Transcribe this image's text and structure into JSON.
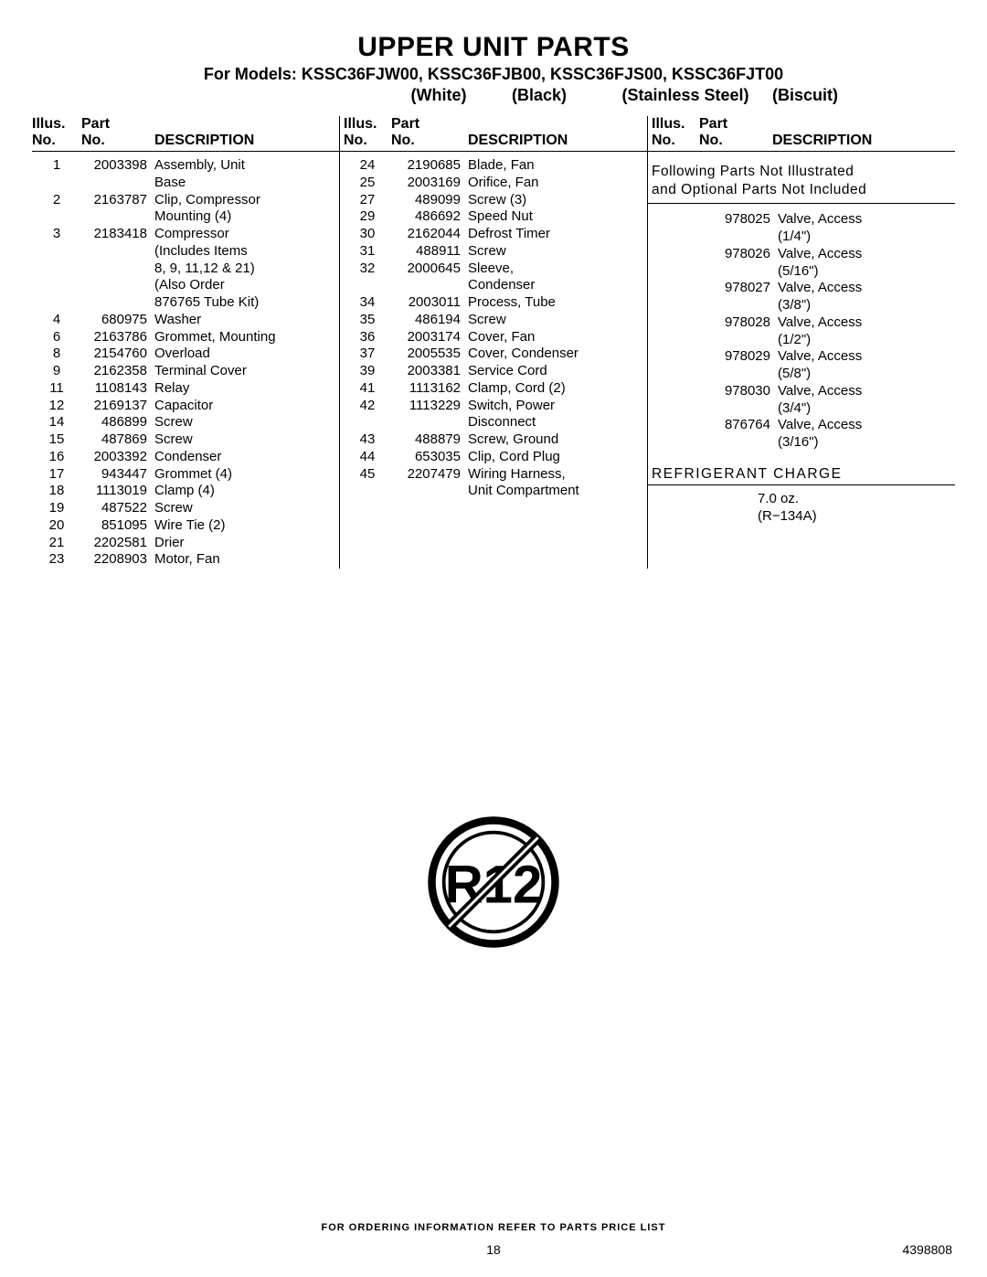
{
  "title": "UPPER UNIT PARTS",
  "subtitle": "For Models: KSSC36FJW00, KSSC36FJB00, KSSC36FJS00, KSSC36FJT00",
  "color_labels": {
    "white": "(White)",
    "black": "(Black)",
    "ss": "(Stainless Steel)",
    "biscuit": "(Biscuit)"
  },
  "headers": {
    "illus1": "Illus.",
    "illus2": "No.",
    "part1": "Part",
    "part2": "No.",
    "desc": "DESCRIPTION"
  },
  "col1": [
    {
      "i": "1",
      "p": "2003398",
      "d": "Assembly, Unit"
    },
    {
      "i": "",
      "p": "",
      "d": "Base"
    },
    {
      "i": "2",
      "p": "2163787",
      "d": "Clip, Compressor"
    },
    {
      "i": "",
      "p": "",
      "d": "Mounting (4)"
    },
    {
      "i": "3",
      "p": "2183418",
      "d": "Compressor"
    },
    {
      "i": "",
      "p": "",
      "d": "(Includes Items"
    },
    {
      "i": "",
      "p": "",
      "d": "8, 9, 11,12 & 21)"
    },
    {
      "i": "",
      "p": "",
      "d": "(Also Order"
    },
    {
      "i": "",
      "p": "",
      "d": "876765 Tube Kit)"
    },
    {
      "i": "4",
      "p": "680975",
      "d": "Washer"
    },
    {
      "i": "6",
      "p": "2163786",
      "d": "Grommet, Mounting"
    },
    {
      "i": "8",
      "p": "2154760",
      "d": "Overload"
    },
    {
      "i": "9",
      "p": "2162358",
      "d": "Terminal Cover"
    },
    {
      "i": "11",
      "p": "1108143",
      "d": "Relay"
    },
    {
      "i": "12",
      "p": "2169137",
      "d": "Capacitor"
    },
    {
      "i": "14",
      "p": "486899",
      "d": "Screw"
    },
    {
      "i": "15",
      "p": "487869",
      "d": "Screw"
    },
    {
      "i": "16",
      "p": "2003392",
      "d": "Condenser"
    },
    {
      "i": "17",
      "p": "943447",
      "d": "Grommet (4)"
    },
    {
      "i": "18",
      "p": "1113019",
      "d": "Clamp (4)"
    },
    {
      "i": "19",
      "p": "487522",
      "d": "Screw"
    },
    {
      "i": "20",
      "p": "851095",
      "d": "Wire Tie (2)"
    },
    {
      "i": "21",
      "p": "2202581",
      "d": "Drier"
    },
    {
      "i": "23",
      "p": "2208903",
      "d": "Motor, Fan"
    }
  ],
  "col2": [
    {
      "i": "24",
      "p": "2190685",
      "d": "Blade, Fan"
    },
    {
      "i": "25",
      "p": "2003169",
      "d": "Orifice, Fan"
    },
    {
      "i": "27",
      "p": "489099",
      "d": "Screw (3)"
    },
    {
      "i": "29",
      "p": "486692",
      "d": "Speed Nut"
    },
    {
      "i": "30",
      "p": "2162044",
      "d": "Defrost Timer"
    },
    {
      "i": "31",
      "p": "488911",
      "d": "Screw"
    },
    {
      "i": "32",
      "p": "2000645",
      "d": "Sleeve,"
    },
    {
      "i": "",
      "p": "",
      "d": "Condenser"
    },
    {
      "i": "34",
      "p": "2003011",
      "d": "Process, Tube"
    },
    {
      "i": "35",
      "p": "486194",
      "d": "Screw"
    },
    {
      "i": "36",
      "p": "2003174",
      "d": "Cover, Fan"
    },
    {
      "i": "37",
      "p": "2005535",
      "d": "Cover, Condenser"
    },
    {
      "i": "39",
      "p": "2003381",
      "d": "Service Cord"
    },
    {
      "i": "41",
      "p": "1113162",
      "d": "Clamp, Cord (2)"
    },
    {
      "i": "42",
      "p": "1113229",
      "d": "Switch, Power"
    },
    {
      "i": "",
      "p": "",
      "d": "Disconnect"
    },
    {
      "i": "43",
      "p": "488879",
      "d": "Screw, Ground"
    },
    {
      "i": "44",
      "p": "653035",
      "d": "Clip, Cord Plug"
    },
    {
      "i": "45",
      "p": "2207479",
      "d": "Wiring Harness,"
    },
    {
      "i": "",
      "p": "",
      "d": "Unit Compartment"
    }
  ],
  "note_line1": "Following Parts Not Illustrated",
  "note_line2": "and Optional Parts Not Included",
  "col3": [
    {
      "i": "",
      "p": "978025",
      "d": "Valve, Access"
    },
    {
      "i": "",
      "p": "",
      "d": "(1/4\")"
    },
    {
      "i": "",
      "p": "978026",
      "d": "Valve, Access"
    },
    {
      "i": "",
      "p": "",
      "d": "(5/16\")"
    },
    {
      "i": "",
      "p": "978027",
      "d": "Valve, Access"
    },
    {
      "i": "",
      "p": "",
      "d": "(3/8\")"
    },
    {
      "i": "",
      "p": "978028",
      "d": "Valve, Access"
    },
    {
      "i": "",
      "p": "",
      "d": "(1/2\")"
    },
    {
      "i": "",
      "p": "978029",
      "d": "Valve, Access"
    },
    {
      "i": "",
      "p": "",
      "d": "(5/8\")"
    },
    {
      "i": "",
      "p": "978030",
      "d": "Valve, Access"
    },
    {
      "i": "",
      "p": "",
      "d": "(3/4\")"
    },
    {
      "i": "",
      "p": "876764",
      "d": "Valve, Access"
    },
    {
      "i": "",
      "p": "",
      "d": "(3/16\")"
    }
  ],
  "ref_title": "REFRIGERANT CHARGE",
  "ref_val1": "7.0 oz.",
  "ref_val2": "(R−134A)",
  "symbol_text": "R12",
  "footer_note": "FOR ORDERING INFORMATION REFER TO PARTS PRICE LIST",
  "page_num": "18",
  "doc_num": "4398808"
}
